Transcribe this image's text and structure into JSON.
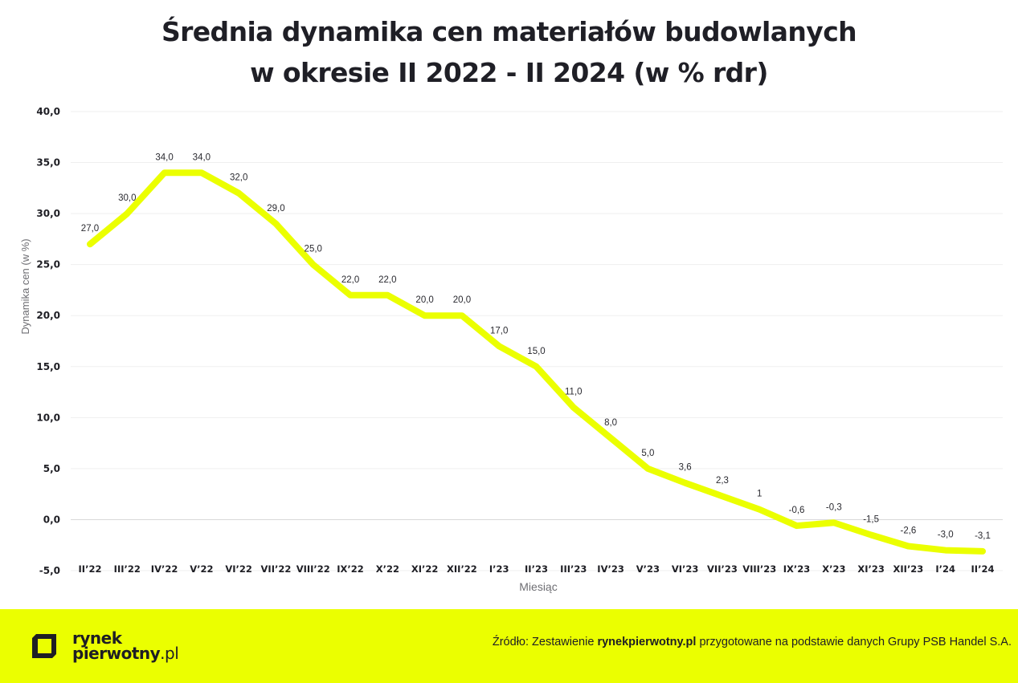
{
  "title": {
    "line1": "Średnia dynamika cen materiałów budowlanych",
    "line2": "w okresie II 2022 - II 2024 (w % rdr)"
  },
  "footer": {
    "logo_line1": "rynek",
    "logo_line2": "pierwotny",
    "logo_suffix": ".pl",
    "source_prefix": "Źródło: Zestawienie ",
    "source_bold": "rynekpierwotny.pl",
    "source_suffix": " przygotowane na podstawie danych Grupy PSB Handel S.A.",
    "background_color": "#ebff00"
  },
  "chart_data": {
    "type": "line",
    "title": "Średnia dynamika cen materiałów budowlanych w okresie II 2022 - II 2024 (w % rdr)",
    "xlabel": "Miesiąc",
    "ylabel": "Dynamika cen (w %)",
    "ylim": [
      -5,
      40
    ],
    "yticks": [
      -5,
      0,
      5,
      10,
      15,
      20,
      25,
      30,
      35,
      40
    ],
    "ytick_labels": [
      "-5,0",
      "0,0",
      "5,0",
      "10,0",
      "15,0",
      "20,0",
      "25,0",
      "30,0",
      "35,0",
      "40,0"
    ],
    "grid": true,
    "legend": "none",
    "line_color": "#ebff00",
    "categories": [
      "II'22",
      "III'22",
      "IV'22",
      "V'22",
      "VI'22",
      "VII'22",
      "VIII'22",
      "IX'22",
      "X'22",
      "XI'22",
      "XII'22",
      "I'23",
      "II'23",
      "III'23",
      "IV'23",
      "V'23",
      "VI'23",
      "VII'23",
      "VIII'23",
      "IX'23",
      "X'23",
      "XI'23",
      "XII'23",
      "I'24",
      "II'24"
    ],
    "values": [
      27.0,
      30.0,
      34.0,
      34.0,
      32.0,
      29.0,
      25.0,
      22.0,
      22.0,
      20.0,
      20.0,
      17.0,
      15.0,
      11.0,
      8.0,
      5.0,
      3.6,
      2.3,
      1,
      -0.6,
      -0.3,
      -1.5,
      -2.6,
      -3.0,
      -3.1
    ],
    "data_labels": [
      "27,0",
      "30,0",
      "34,0",
      "34,0",
      "32,0",
      "29,0",
      "25,0",
      "22,0",
      "22,0",
      "20,0",
      "20,0",
      "17,0",
      "15,0",
      "11,0",
      "8,0",
      "5,0",
      "3,6",
      "2,3",
      "1",
      "-0,6",
      "-0,3",
      "-1,5",
      "-2,6",
      "-3,0",
      "-3,1"
    ]
  }
}
